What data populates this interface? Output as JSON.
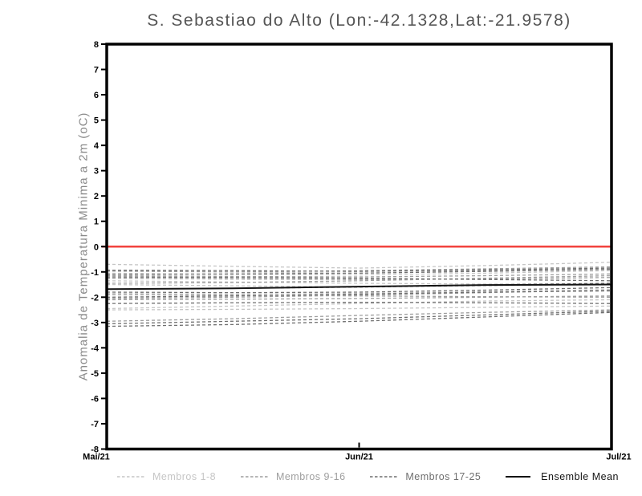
{
  "chart_data": {
    "type": "line",
    "title": "S. Sebastiao do Alto (Lon:-42.1328,Lat:-21.9578)",
    "ylabel": "Anomalia de Temperatura Minima a 2m (oC)",
    "xlabel": "",
    "ylim": [
      -8,
      8
    ],
    "ytick_step": 1,
    "grid": false,
    "legend_position": "bottom",
    "x_ticks": [
      {
        "t": 0.0,
        "label": "Mai/21"
      },
      {
        "t": 0.5,
        "label": "Jun/21"
      },
      {
        "t": 1.0,
        "label": "Jul/21"
      }
    ],
    "zero_line": {
      "y": 0,
      "color": "#f2433e"
    },
    "x": [
      0,
      0.25,
      0.5,
      0.75,
      1
    ],
    "groups": [
      {
        "name": "Membros 1-8",
        "color": "#c6c6c6",
        "style": "dashed"
      },
      {
        "name": "Membros 9-16",
        "color": "#9e9e9e",
        "style": "dashed"
      },
      {
        "name": "Membros 17-25",
        "color": "#6f6f6f",
        "style": "dashed"
      },
      {
        "name": "Ensemble Mean",
        "color": "#141414",
        "style": "solid"
      }
    ],
    "series": [
      {
        "name": "Membro 1",
        "group": 0,
        "values": [
          -0.7,
          -0.78,
          -0.85,
          -0.75,
          -0.62
        ]
      },
      {
        "name": "Membro 2",
        "group": 0,
        "values": [
          -1.05,
          -1.1,
          -1.12,
          -1.05,
          -0.95
        ]
      },
      {
        "name": "Membro 3",
        "group": 0,
        "values": [
          -1.35,
          -1.4,
          -1.45,
          -1.48,
          -1.45
        ]
      },
      {
        "name": "Membro 4",
        "group": 0,
        "values": [
          -1.5,
          -1.55,
          -1.6,
          -1.55,
          -1.48
        ]
      },
      {
        "name": "Membro 5",
        "group": 0,
        "values": [
          -1.85,
          -1.88,
          -1.85,
          -1.78,
          -1.7
        ]
      },
      {
        "name": "Membro 6",
        "group": 0,
        "values": [
          -2.45,
          -2.35,
          -2.25,
          -2.15,
          -2.1
        ]
      },
      {
        "name": "Membro 7",
        "group": 0,
        "values": [
          -2.5,
          -2.48,
          -2.45,
          -2.4,
          -2.35
        ]
      },
      {
        "name": "Membro 8",
        "group": 0,
        "values": [
          -0.95,
          -1.0,
          -1.05,
          -0.95,
          -0.85
        ]
      },
      {
        "name": "Membro 9",
        "group": 1,
        "values": [
          -0.97,
          -1.0,
          -0.95,
          -0.88,
          -0.8
        ]
      },
      {
        "name": "Membro 10",
        "group": 1,
        "values": [
          -1.15,
          -1.18,
          -1.2,
          -1.15,
          -1.08
        ]
      },
      {
        "name": "Membro 11",
        "group": 1,
        "values": [
          -1.45,
          -1.42,
          -1.35,
          -1.25,
          -1.15
        ]
      },
      {
        "name": "Membro 12",
        "group": 1,
        "values": [
          -1.9,
          -1.92,
          -1.95,
          -1.98,
          -2.0
        ]
      },
      {
        "name": "Membro 13",
        "group": 1,
        "values": [
          -2.05,
          -2.0,
          -1.92,
          -1.82,
          -1.72
        ]
      },
      {
        "name": "Membro 14",
        "group": 1,
        "values": [
          -2.95,
          -2.85,
          -2.72,
          -2.6,
          -2.5
        ]
      },
      {
        "name": "Membro 15",
        "group": 1,
        "values": [
          -1.25,
          -1.28,
          -1.3,
          -1.28,
          -1.22
        ]
      },
      {
        "name": "Membro 16",
        "group": 1,
        "values": [
          -2.1,
          -2.08,
          -2.05,
          -2.0,
          -1.95
        ]
      },
      {
        "name": "Membro 17",
        "group": 2,
        "values": [
          -0.93,
          -0.95,
          -0.98,
          -0.92,
          -0.85
        ]
      },
      {
        "name": "Membro 18",
        "group": 2,
        "values": [
          -1.2,
          -1.22,
          -1.25,
          -1.3,
          -1.35
        ]
      },
      {
        "name": "Membro 19",
        "group": 2,
        "values": [
          -1.68,
          -1.65,
          -1.6,
          -1.52,
          -1.45
        ]
      },
      {
        "name": "Membro 20",
        "group": 2,
        "values": [
          -1.8,
          -1.82,
          -1.8,
          -1.72,
          -1.62
        ]
      },
      {
        "name": "Membro 21",
        "group": 2,
        "values": [
          -2.0,
          -1.95,
          -1.88,
          -1.8,
          -1.75
        ]
      },
      {
        "name": "Membro 22",
        "group": 2,
        "values": [
          -2.25,
          -2.22,
          -2.2,
          -2.22,
          -2.25
        ]
      },
      {
        "name": "Membro 23",
        "group": 2,
        "values": [
          -3.05,
          -2.95,
          -2.85,
          -2.7,
          -2.55
        ]
      },
      {
        "name": "Membro 24",
        "group": 2,
        "values": [
          -3.15,
          -3.08,
          -2.95,
          -2.78,
          -2.6
        ]
      },
      {
        "name": "Membro 25",
        "group": 2,
        "values": [
          -1.1,
          -1.08,
          -1.05,
          -0.98,
          -0.9
        ]
      },
      {
        "name": "Ensemble Mean",
        "group": 3,
        "values": [
          -1.68,
          -1.65,
          -1.58,
          -1.52,
          -1.5
        ]
      }
    ]
  }
}
